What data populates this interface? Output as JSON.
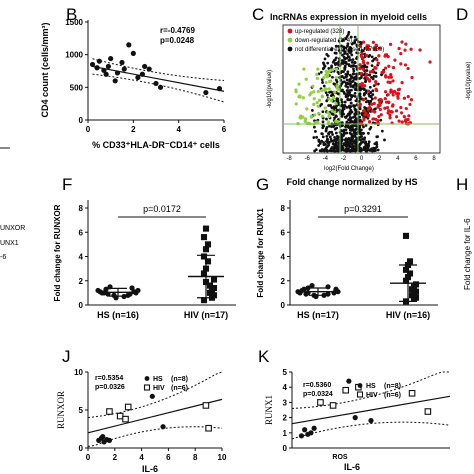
{
  "panel_letters": {
    "B": "B",
    "C": "C",
    "D": "D",
    "F": "F",
    "G": "G",
    "H": "H",
    "J": "J",
    "K": "K"
  },
  "cropped_left_text": [
    "UNXOR",
    "UNX1",
    "-6"
  ],
  "cropped_right_text": {
    "d_axis": "-log10(pvalue)",
    "h_axis": "Fold change for IL-6"
  },
  "colors": {
    "up": "#e3101a",
    "down": "#8fd13f",
    "nodiff": "#111111",
    "grid": "#7fbf5a"
  },
  "chart_data": [
    {
      "id": "B",
      "type": "scatter",
      "xlabel": "% CD33⁺HLA-DR⁻CD14⁺ cells",
      "ylabel": "CD4 count (cells/mm³)",
      "xlim": [
        0,
        6
      ],
      "ylim": [
        0,
        1500
      ],
      "xticks": [
        "0",
        "2",
        "4",
        "6"
      ],
      "yticks": [
        "0",
        "500",
        "1000",
        "1500"
      ],
      "annotation": [
        "r=-0.4769",
        "p=0.0248"
      ],
      "points": [
        [
          0.2,
          850
        ],
        [
          0.4,
          800
        ],
        [
          0.5,
          900
        ],
        [
          0.7,
          760
        ],
        [
          0.8,
          700
        ],
        [
          0.9,
          820
        ],
        [
          1.0,
          940
        ],
        [
          1.2,
          600
        ],
        [
          1.3,
          720
        ],
        [
          1.5,
          880
        ],
        [
          1.6,
          780
        ],
        [
          1.8,
          1150
        ],
        [
          2.0,
          1020
        ],
        [
          2.2,
          650
        ],
        [
          2.4,
          700
        ],
        [
          2.5,
          820
        ],
        [
          3.0,
          560
        ],
        [
          3.2,
          500
        ],
        [
          5.2,
          420
        ],
        [
          5.8,
          480
        ],
        [
          2.7,
          780
        ]
      ],
      "fit_line": [
        [
          0.2,
          820
        ],
        [
          6,
          440
        ]
      ]
    },
    {
      "id": "C",
      "type": "scatter",
      "title": "lncRNAs expression in myeloid cells",
      "subtitle": "Fold change normalized by HS",
      "xlabel": "log2(Fold Change)",
      "ylabel": "-log10(pvalue)",
      "xticks": [
        "-8",
        "-6",
        "-4",
        "-2",
        "0",
        "2",
        "4",
        "6",
        "8"
      ],
      "legend": [
        {
          "name": "up-regulated (328)",
          "color": "#e3101a"
        },
        {
          "name": "down-regulated (174)",
          "color": "#8fd13f"
        },
        {
          "name": "not differential expressed (27989)",
          "color": "#111111"
        }
      ]
    },
    {
      "id": "F",
      "type": "scatter",
      "ylabel": "Fold change for RUNXOR",
      "ylim": [
        0,
        8
      ],
      "yticks": [
        "0",
        "2",
        "4",
        "6",
        "8"
      ],
      "categories": [
        "HS (n=16)",
        "HIV (n=17)"
      ],
      "pvalue": "p=0.0172",
      "series": [
        {
          "name": "HS (n=16)",
          "marker": "circle",
          "mean": 1.05,
          "sd": 0.32,
          "values": [
            0.6,
            0.7,
            0.8,
            0.8,
            0.9,
            0.9,
            1.0,
            1.0,
            1.0,
            1.1,
            1.1,
            1.2,
            1.2,
            1.3,
            1.4,
            1.5
          ]
        },
        {
          "name": "HIV (n=17)",
          "marker": "square",
          "mean": 2.35,
          "sd": 1.75,
          "values": [
            0.4,
            0.6,
            0.8,
            1.0,
            1.2,
            1.4,
            1.6,
            1.9,
            2.1,
            2.6,
            3.0,
            3.6,
            4.0,
            4.6,
            5.0,
            5.6,
            6.3
          ]
        }
      ]
    },
    {
      "id": "G",
      "type": "scatter",
      "ylabel": "Fold change for RUNX1",
      "ylim": [
        0,
        8
      ],
      "yticks": [
        "0",
        "2",
        "4",
        "6",
        "8"
      ],
      "categories": [
        "HS (n=17)",
        "HIV (n=16)"
      ],
      "pvalue": "p=0.3291",
      "series": [
        {
          "name": "HS (n=17)",
          "marker": "circle",
          "mean": 1.1,
          "sd": 0.3,
          "values": [
            0.7,
            0.8,
            0.8,
            0.9,
            0.9,
            1.0,
            1.0,
            1.0,
            1.1,
            1.1,
            1.2,
            1.2,
            1.3,
            1.3,
            1.4,
            1.5,
            1.6
          ]
        },
        {
          "name": "HIV (n=16)",
          "marker": "square",
          "mean": 1.8,
          "sd": 1.5,
          "values": [
            0.3,
            0.5,
            0.6,
            0.8,
            1.0,
            1.1,
            1.3,
            1.5,
            1.7,
            2.0,
            2.3,
            2.6,
            2.9,
            3.3,
            3.6,
            5.7
          ]
        }
      ]
    },
    {
      "id": "J",
      "type": "scatter",
      "xlabel": "IL-6",
      "ylabel": "RUNXOR",
      "xlim": [
        0,
        10
      ],
      "ylim": [
        0,
        10
      ],
      "xticks": [
        "0",
        "2",
        "4",
        "6",
        "8",
        "10"
      ],
      "yticks": [
        "0",
        "5",
        "10"
      ],
      "annotation": [
        "r=0.5354",
        "p=0.0326"
      ],
      "legend": [
        {
          "name": "HS",
          "marker": "circle"
        },
        {
          "name": "HIV",
          "marker": "square"
        }
      ],
      "legend_n": [
        "(n=8)",
        "(n=6)"
      ],
      "series": [
        {
          "name": "HS",
          "marker": "circle",
          "points": [
            [
              0.8,
              1.0
            ],
            [
              1.0,
              1.3
            ],
            [
              1.2,
              0.8
            ],
            [
              1.4,
              1.1
            ],
            [
              1.6,
              1.0
            ],
            [
              4.8,
              6.8
            ],
            [
              5.6,
              2.8
            ],
            [
              1.1,
              1.5
            ]
          ]
        },
        {
          "name": "HIV",
          "marker": "square",
          "points": [
            [
              1.6,
              4.8
            ],
            [
              2.4,
              4.2
            ],
            [
              2.8,
              3.8
            ],
            [
              3.0,
              5.4
            ],
            [
              8.8,
              5.6
            ],
            [
              9.0,
              2.6
            ]
          ]
        }
      ],
      "fit_line": [
        [
          0,
          2.0
        ],
        [
          10,
          6.4
        ]
      ]
    },
    {
      "id": "K",
      "type": "scatter",
      "xlabel": "IL-6",
      "ylabel": "RUNX1",
      "xlim": [
        0,
        10
      ],
      "ylim": [
        0,
        5
      ],
      "yticks": [
        "0",
        "1",
        "2",
        "3",
        "4",
        "5"
      ],
      "xtick_text": "ROS",
      "annotation": [
        "r=0.5360",
        "p=0.0324"
      ],
      "legend": [
        {
          "name": "HS",
          "marker": "circle"
        },
        {
          "name": "HIV",
          "marker": "square"
        }
      ],
      "legend_n": [
        "(n=8)",
        "(n=6)"
      ],
      "series": [
        {
          "name": "HS",
          "marker": "circle",
          "points": [
            [
              0.6,
              0.8
            ],
            [
              0.8,
              1.2
            ],
            [
              1.0,
              0.9
            ],
            [
              1.2,
              1.0
            ],
            [
              1.4,
              1.3
            ],
            [
              3.6,
              4.4
            ],
            [
              4.0,
              2.0
            ],
            [
              5.0,
              1.8
            ]
          ]
        },
        {
          "name": "HIV",
          "marker": "square",
          "points": [
            [
              1.8,
              3.0
            ],
            [
              2.6,
              2.8
            ],
            [
              3.4,
              3.8
            ],
            [
              4.2,
              4.0
            ],
            [
              7.6,
              3.6
            ],
            [
              8.6,
              2.4
            ]
          ]
        }
      ],
      "fit_line": [
        [
          0,
          1.6
        ],
        [
          10,
          3.4
        ]
      ]
    }
  ]
}
